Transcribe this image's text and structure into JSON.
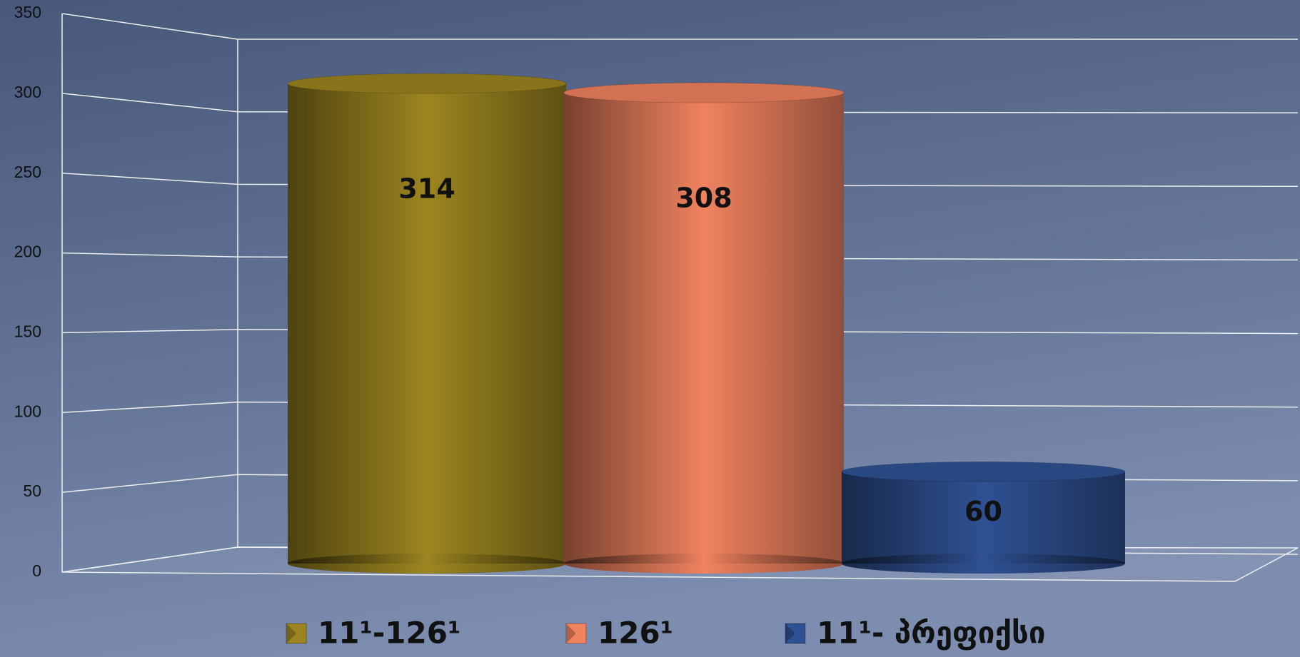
{
  "chart_data": {
    "type": "bar",
    "categories": [
      null
    ],
    "series": [
      {
        "name": "11¹-126¹",
        "color": "#9c8520",
        "values": [
          314
        ]
      },
      {
        "name": "126¹",
        "color": "#f0825f",
        "values": [
          308
        ]
      },
      {
        "name": "11¹- პრეფიქსი",
        "color": "#2f5193",
        "values": [
          60
        ]
      }
    ],
    "ylim": [
      0,
      350
    ],
    "yticks": [
      0,
      50,
      100,
      150,
      200,
      250,
      300,
      350
    ],
    "grid": true
  }
}
